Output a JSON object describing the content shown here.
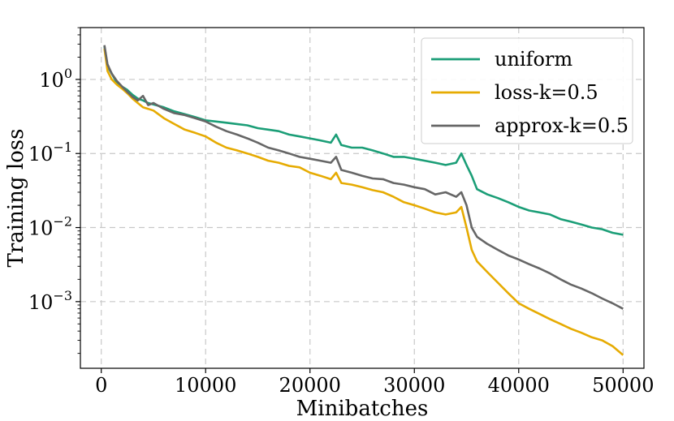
{
  "chart_data": {
    "type": "line",
    "title": "",
    "xlabel": "Minibatches",
    "ylabel": "Training loss",
    "xlim": [
      -2000,
      52000
    ],
    "ylim_log10": [
      -3.9,
      0.7
    ],
    "yscale": "log",
    "grid": true,
    "legend_position": "top-right",
    "x_ticks": [
      0,
      10000,
      20000,
      30000,
      40000,
      50000
    ],
    "x_tick_labels": [
      "0",
      "10000",
      "20000",
      "30000",
      "40000",
      "50000"
    ],
    "y_ticks_log10": [
      0,
      -1,
      -2,
      -3
    ],
    "y_tick_labels": [
      {
        "base": "10",
        "exp": "0"
      },
      {
        "base": "10",
        "exp": "−1"
      },
      {
        "base": "10",
        "exp": "−2"
      },
      {
        "base": "10",
        "exp": "−3"
      }
    ],
    "series": [
      {
        "name": "uniform",
        "color": "#1b9e77",
        "points": [
          [
            300,
            2.8
          ],
          [
            600,
            1.5
          ],
          [
            1000,
            1.2
          ],
          [
            1500,
            0.9
          ],
          [
            2000,
            0.8
          ],
          [
            2500,
            0.72
          ],
          [
            3000,
            0.62
          ],
          [
            3500,
            0.55
          ],
          [
            4000,
            0.52
          ],
          [
            4500,
            0.48
          ],
          [
            5000,
            0.46
          ],
          [
            6000,
            0.42
          ],
          [
            7000,
            0.37
          ],
          [
            8000,
            0.34
          ],
          [
            9000,
            0.31
          ],
          [
            10000,
            0.28
          ],
          [
            11000,
            0.27
          ],
          [
            12000,
            0.26
          ],
          [
            13000,
            0.25
          ],
          [
            14000,
            0.24
          ],
          [
            15000,
            0.22
          ],
          [
            16000,
            0.21
          ],
          [
            17000,
            0.2
          ],
          [
            18000,
            0.18
          ],
          [
            19000,
            0.17
          ],
          [
            20000,
            0.16
          ],
          [
            21000,
            0.15
          ],
          [
            22000,
            0.14
          ],
          [
            22500,
            0.18
          ],
          [
            23000,
            0.13
          ],
          [
            24000,
            0.12
          ],
          [
            25000,
            0.12
          ],
          [
            26000,
            0.11
          ],
          [
            27000,
            0.1
          ],
          [
            28000,
            0.09
          ],
          [
            29000,
            0.09
          ],
          [
            30000,
            0.085
          ],
          [
            31000,
            0.08
          ],
          [
            32000,
            0.075
          ],
          [
            33000,
            0.07
          ],
          [
            34000,
            0.075
          ],
          [
            34500,
            0.1
          ],
          [
            35000,
            0.07
          ],
          [
            35500,
            0.05
          ],
          [
            36000,
            0.033
          ],
          [
            37000,
            0.028
          ],
          [
            38000,
            0.025
          ],
          [
            39000,
            0.022
          ],
          [
            40000,
            0.019
          ],
          [
            41000,
            0.017
          ],
          [
            42000,
            0.016
          ],
          [
            43000,
            0.015
          ],
          [
            44000,
            0.013
          ],
          [
            45000,
            0.012
          ],
          [
            46000,
            0.011
          ],
          [
            47000,
            0.01
          ],
          [
            48000,
            0.0095
          ],
          [
            49000,
            0.0085
          ],
          [
            50000,
            0.008
          ]
        ]
      },
      {
        "name": "loss-k=0.5",
        "color": "#e6ab02",
        "points": [
          [
            300,
            2.6
          ],
          [
            600,
            1.3
          ],
          [
            1000,
            1.0
          ],
          [
            1500,
            0.85
          ],
          [
            2000,
            0.75
          ],
          [
            2500,
            0.65
          ],
          [
            3000,
            0.55
          ],
          [
            3500,
            0.48
          ],
          [
            4000,
            0.42
          ],
          [
            4500,
            0.4
          ],
          [
            5000,
            0.38
          ],
          [
            6000,
            0.3
          ],
          [
            7000,
            0.25
          ],
          [
            8000,
            0.21
          ],
          [
            9000,
            0.19
          ],
          [
            10000,
            0.17
          ],
          [
            11000,
            0.14
          ],
          [
            12000,
            0.12
          ],
          [
            13000,
            0.11
          ],
          [
            14000,
            0.1
          ],
          [
            15000,
            0.09
          ],
          [
            16000,
            0.08
          ],
          [
            17000,
            0.075
          ],
          [
            18000,
            0.068
          ],
          [
            19000,
            0.065
          ],
          [
            20000,
            0.055
          ],
          [
            21000,
            0.05
          ],
          [
            22000,
            0.045
          ],
          [
            22500,
            0.055
          ],
          [
            23000,
            0.04
          ],
          [
            24000,
            0.038
          ],
          [
            25000,
            0.035
          ],
          [
            26000,
            0.032
          ],
          [
            27000,
            0.03
          ],
          [
            28000,
            0.026
          ],
          [
            29000,
            0.022
          ],
          [
            30000,
            0.02
          ],
          [
            31000,
            0.018
          ],
          [
            32000,
            0.016
          ],
          [
            33000,
            0.015
          ],
          [
            34000,
            0.016
          ],
          [
            34500,
            0.019
          ],
          [
            35000,
            0.01
          ],
          [
            35500,
            0.005
          ],
          [
            36000,
            0.0035
          ],
          [
            37000,
            0.0025
          ],
          [
            38000,
            0.0018
          ],
          [
            39000,
            0.0013
          ],
          [
            40000,
            0.00095
          ],
          [
            41000,
            0.0008
          ],
          [
            42000,
            0.00068
          ],
          [
            43000,
            0.00058
          ],
          [
            44000,
            0.0005
          ],
          [
            45000,
            0.00043
          ],
          [
            46000,
            0.00038
          ],
          [
            47000,
            0.00033
          ],
          [
            48000,
            0.0003
          ],
          [
            49000,
            0.00025
          ],
          [
            50000,
            0.00019
          ]
        ]
      },
      {
        "name": "approx-k=0.5",
        "color": "#666666",
        "points": [
          [
            300,
            2.9
          ],
          [
            600,
            1.6
          ],
          [
            1000,
            1.2
          ],
          [
            1500,
            0.95
          ],
          [
            2000,
            0.8
          ],
          [
            2500,
            0.68
          ],
          [
            3000,
            0.58
          ],
          [
            3500,
            0.52
          ],
          [
            4000,
            0.6
          ],
          [
            4500,
            0.45
          ],
          [
            5000,
            0.48
          ],
          [
            6000,
            0.4
          ],
          [
            7000,
            0.35
          ],
          [
            8000,
            0.33
          ],
          [
            9000,
            0.3
          ],
          [
            10000,
            0.27
          ],
          [
            11000,
            0.23
          ],
          [
            12000,
            0.2
          ],
          [
            13000,
            0.18
          ],
          [
            14000,
            0.16
          ],
          [
            15000,
            0.14
          ],
          [
            16000,
            0.12
          ],
          [
            17000,
            0.11
          ],
          [
            18000,
            0.1
          ],
          [
            19000,
            0.09
          ],
          [
            20000,
            0.085
          ],
          [
            21000,
            0.08
          ],
          [
            22000,
            0.075
          ],
          [
            22500,
            0.09
          ],
          [
            23000,
            0.06
          ],
          [
            24000,
            0.055
          ],
          [
            25000,
            0.05
          ],
          [
            26000,
            0.046
          ],
          [
            27000,
            0.045
          ],
          [
            28000,
            0.04
          ],
          [
            29000,
            0.038
          ],
          [
            30000,
            0.035
          ],
          [
            31000,
            0.033
          ],
          [
            32000,
            0.028
          ],
          [
            33000,
            0.03
          ],
          [
            34000,
            0.026
          ],
          [
            34500,
            0.03
          ],
          [
            35000,
            0.02
          ],
          [
            35500,
            0.01
          ],
          [
            36000,
            0.0075
          ],
          [
            37000,
            0.006
          ],
          [
            38000,
            0.005
          ],
          [
            39000,
            0.0042
          ],
          [
            40000,
            0.0037
          ],
          [
            41000,
            0.0032
          ],
          [
            42000,
            0.0028
          ],
          [
            43000,
            0.0024
          ],
          [
            44000,
            0.002
          ],
          [
            45000,
            0.0017
          ],
          [
            46000,
            0.0015
          ],
          [
            47000,
            0.0013
          ],
          [
            48000,
            0.0011
          ],
          [
            49000,
            0.00095
          ],
          [
            50000,
            0.0008
          ]
        ]
      }
    ]
  }
}
